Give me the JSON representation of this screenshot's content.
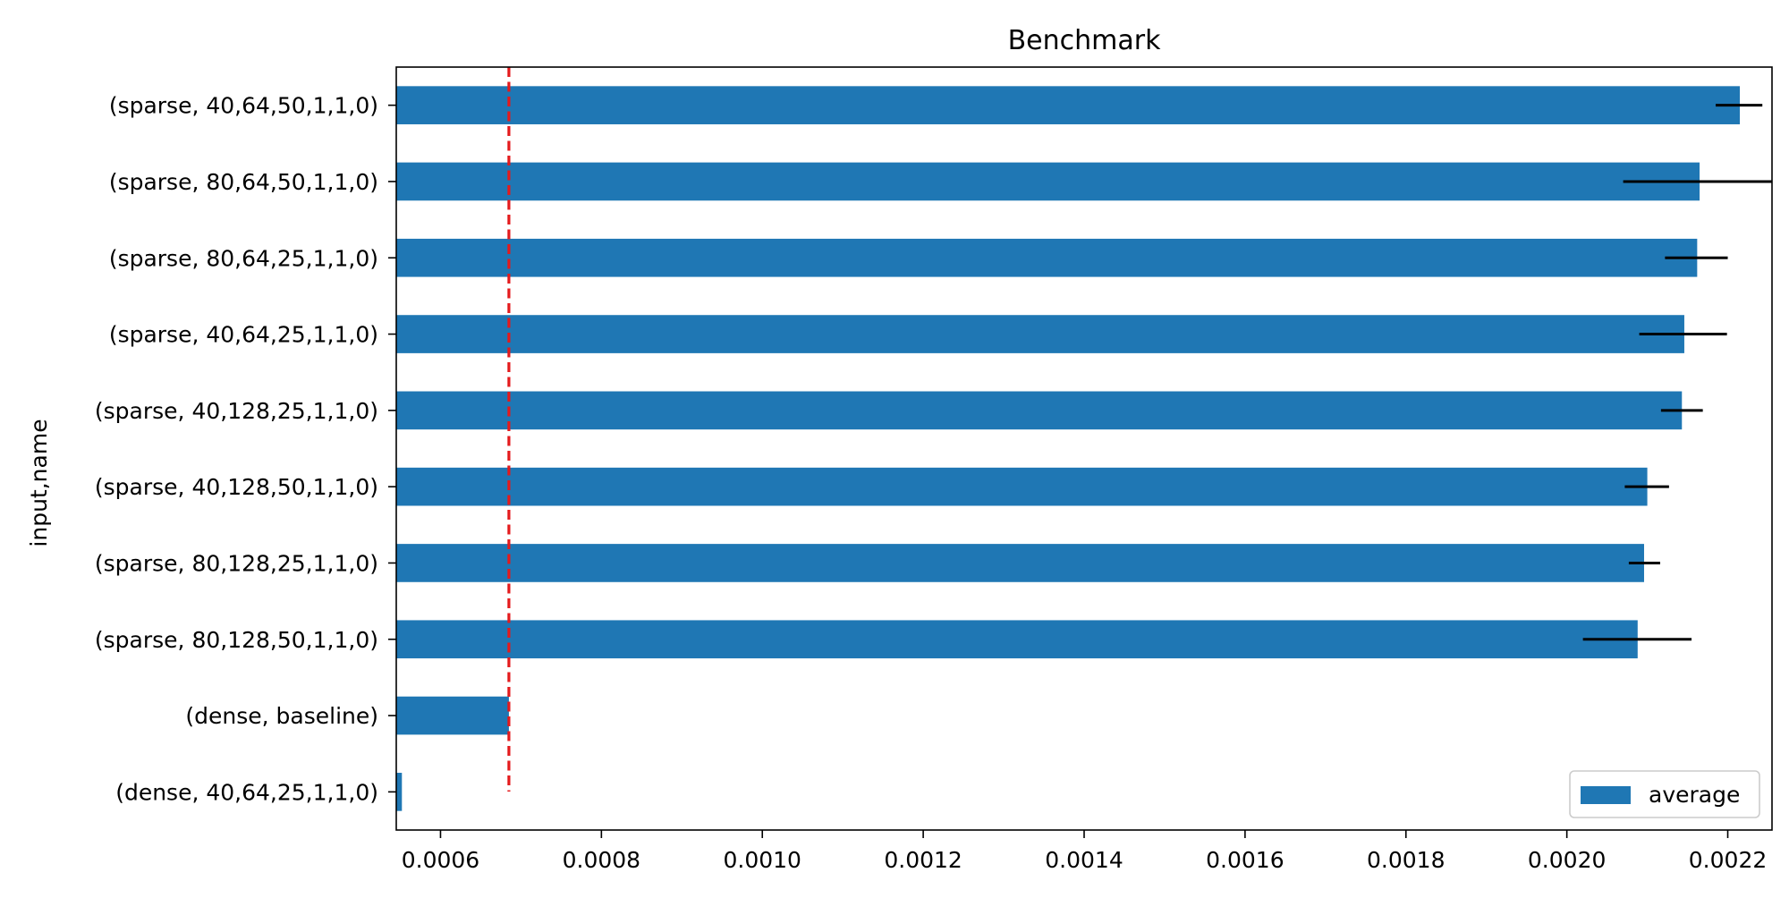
{
  "chart_data": {
    "type": "bar",
    "orientation": "horizontal",
    "title": "Benchmark",
    "xlabel": "",
    "ylabel": "input,name",
    "categories": [
      "(sparse, 40,64,50,1,1,0)",
      "(sparse, 80,64,50,1,1,0)",
      "(sparse, 80,64,25,1,1,0)",
      "(sparse, 40,64,25,1,1,0)",
      "(sparse, 40,128,25,1,1,0)",
      "(sparse, 40,128,50,1,1,0)",
      "(sparse, 80,128,25,1,1,0)",
      "(sparse, 80,128,50,1,1,0)",
      "(dense, baseline)",
      "(dense, 40,64,25,1,1,0)"
    ],
    "series": [
      {
        "name": "average",
        "color": "#1f77b4",
        "values": [
          0.002215,
          0.002165,
          0.002162,
          0.002146,
          0.002143,
          0.0021,
          0.002096,
          0.002088,
          0.000685,
          0.000552
        ],
        "error_low": [
          0.002185,
          0.00207,
          0.002122,
          0.00209,
          0.002117,
          0.002072,
          0.002077,
          0.00202,
          null,
          null
        ],
        "error_high": [
          0.002243,
          0.00226,
          0.0022,
          0.002199,
          0.002169,
          0.002127,
          0.002116,
          0.002155,
          null,
          null
        ]
      }
    ],
    "xlim": [
      0.000545,
      0.002255
    ],
    "xticks": [
      "0.0006",
      "0.0008",
      "0.0010",
      "0.0012",
      "0.0014",
      "0.0016",
      "0.0018",
      "0.0020",
      "0.0022"
    ],
    "reference_line": {
      "x": 0.000685,
      "color": "#e41a1c",
      "style": "dashed"
    },
    "grid": false,
    "legend": {
      "position": "bottom-right",
      "entries": [
        "average"
      ]
    }
  }
}
